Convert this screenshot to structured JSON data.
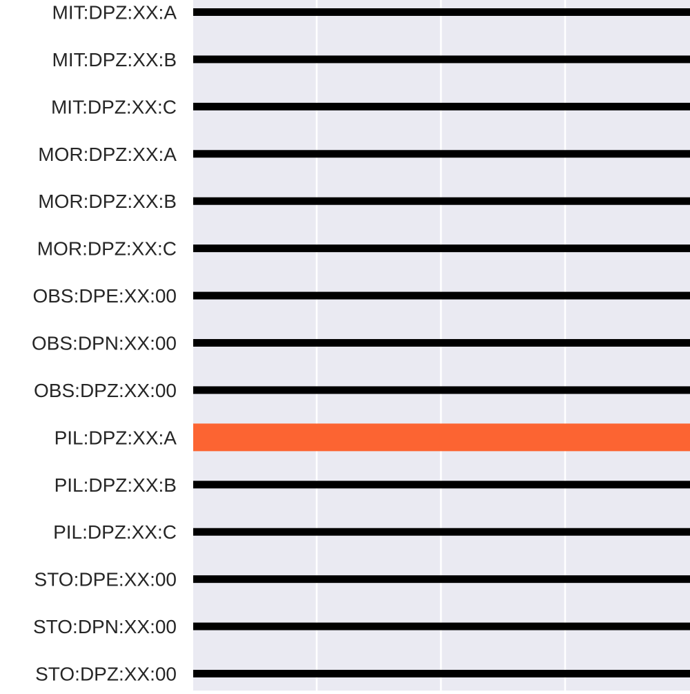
{
  "chart_data": {
    "type": "bar",
    "orientation": "horizontal",
    "categories": [
      "MIT:DPZ:XX:A",
      "MIT:DPZ:XX:B",
      "MIT:DPZ:XX:C",
      "MOR:DPZ:XX:A",
      "MOR:DPZ:XX:B",
      "MOR:DPZ:XX:C",
      "OBS:DPE:XX:00",
      "OBS:DPN:XX:00",
      "OBS:DPZ:XX:00",
      "PIL:DPZ:XX:A",
      "PIL:DPZ:XX:B",
      "PIL:DPZ:XX:C",
      "STO:DPE:XX:00",
      "STO:DPN:XX:00",
      "STO:DPZ:XX:00"
    ],
    "highlighted_category": "PIL:DPZ:XX:A",
    "bar_spans_full_width": true,
    "grid": true,
    "colors": {
      "default_bar": "#000000",
      "highlight_bar": "#fc6432",
      "plot_background": "#eaeaf2",
      "grid": "#ffffff",
      "tick_label": "#262626"
    },
    "title": "",
    "xlabel": "",
    "ylabel": ""
  }
}
